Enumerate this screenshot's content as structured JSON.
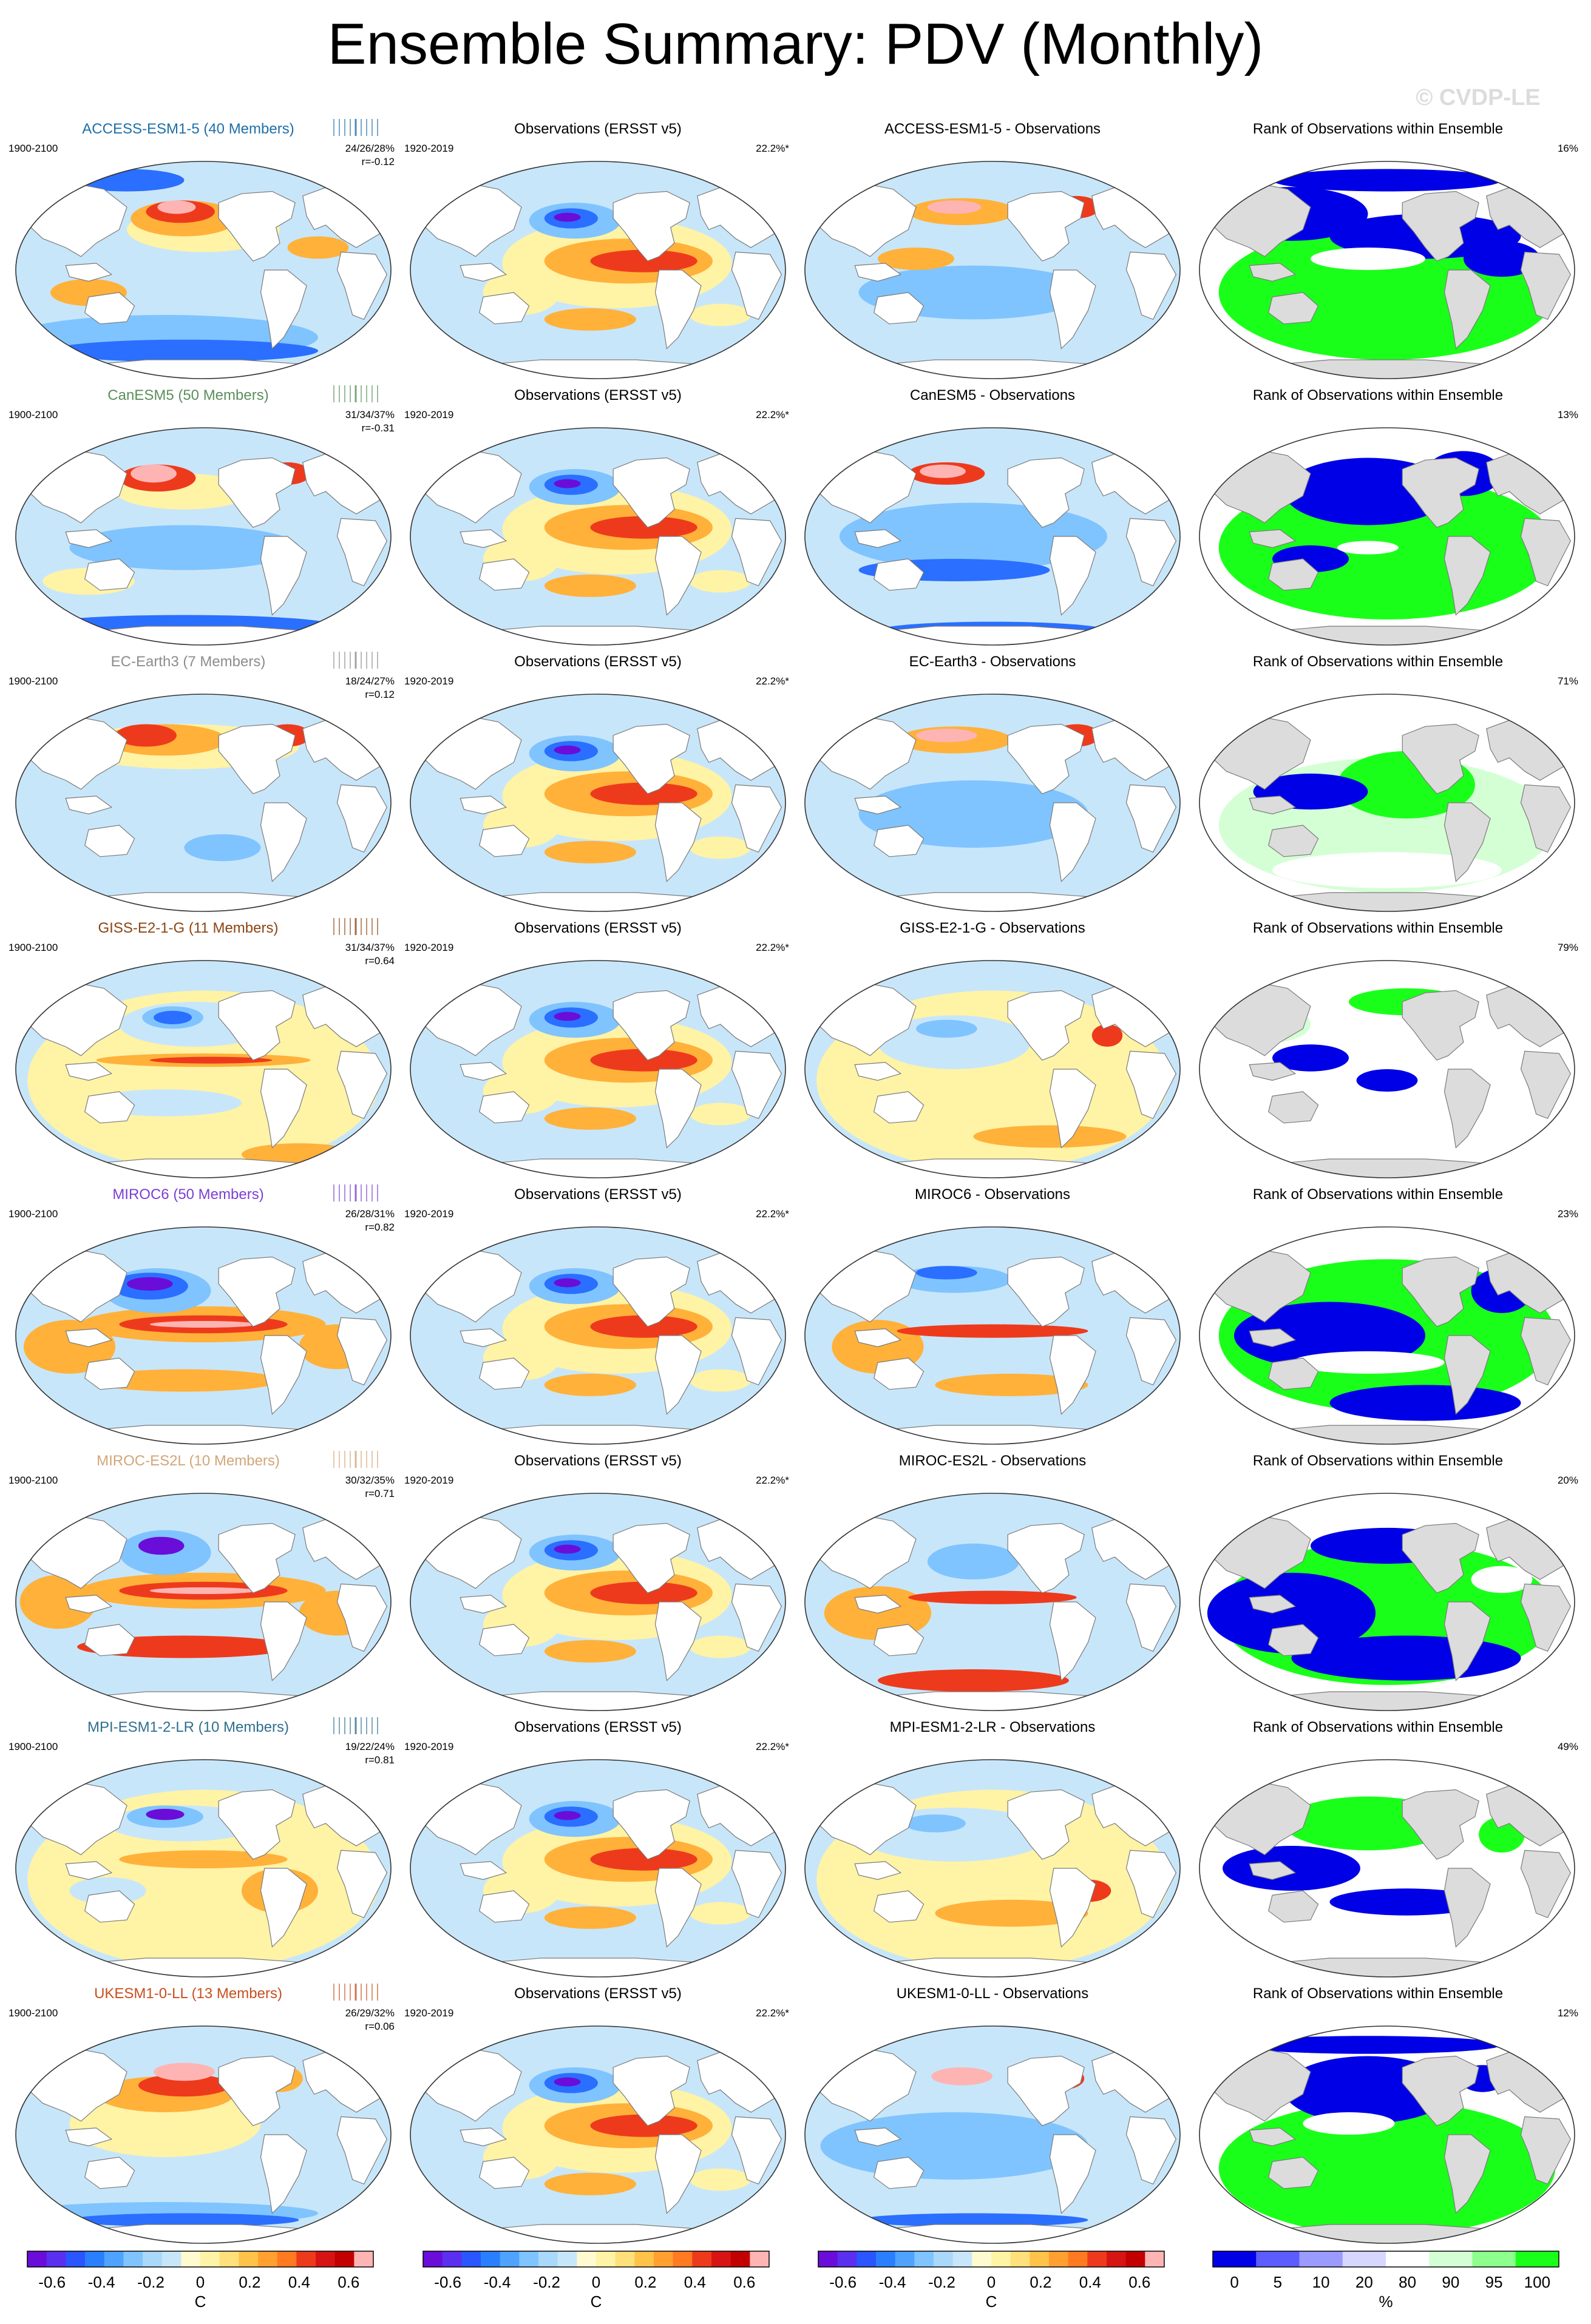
{
  "title": "Ensemble Summary: PDV (Monthly)",
  "watermark": "© CVDP-LE",
  "colors": {
    "cold_strong": "#6a0dd8",
    "cold": "#2a6fff",
    "cool": "#7fc4ff",
    "cool_light": "#c8e6fa",
    "neutral": "#ffffff",
    "warm_light": "#fff3a6",
    "warm": "#ffb13a",
    "hot": "#ee3a1c",
    "hot_strong": "#c30000",
    "extreme": "#ffb4b4",
    "land": "#ffffff",
    "land_rank": "#dcdcdc",
    "rank_low": "#0000e6",
    "rank_high": "#1aff1a",
    "rank_mid": "#ffffff",
    "rank_light_low": "#d6d6ff",
    "rank_light_high": "#d4ffd4"
  },
  "obs_panel": {
    "title": "Observations (ERSST v5)",
    "period": "1920-2019",
    "pct": "22.2%*"
  },
  "rank_title": "Rank of Observations within Ensemble",
  "rows": [
    {
      "model": "ACCESS-ESM1-5",
      "members": "ACCESS-ESM1-5 (40 Members)",
      "color": "#1f6fa8",
      "period": "1900-2100",
      "pcts": "24/26/28%",
      "r": "r=-0.12",
      "diff": "ACCESS-ESM1-5 - Observations",
      "rank_pct": "16%",
      "pattern": "access"
    },
    {
      "model": "CanESM5",
      "members": "CanESM5 (50 Members)",
      "color": "#5b8f5b",
      "period": "1900-2100",
      "pcts": "31/34/37%",
      "r": "r=-0.31",
      "diff": "CanESM5 - Observations",
      "rank_pct": "13%",
      "pattern": "canesm"
    },
    {
      "model": "EC-Earth3",
      "members": "EC-Earth3 (7 Members)",
      "color": "#8c8c8c",
      "period": "1900-2100",
      "pcts": "18/24/27%",
      "r": "r=0.12",
      "diff": "EC-Earth3 - Observations",
      "rank_pct": "71%",
      "pattern": "ecearth"
    },
    {
      "model": "GISS-E2-1-G",
      "members": "GISS-E2-1-G (11 Members)",
      "color": "#8b4513",
      "period": "1900-2100",
      "pcts": "31/34/37%",
      "r": "r=0.64",
      "diff": "GISS-E2-1-G - Observations",
      "rank_pct": "79%",
      "pattern": "giss"
    },
    {
      "model": "MIROC6",
      "members": "MIROC6 (50 Members)",
      "color": "#7b3fd4",
      "period": "1900-2100",
      "pcts": "26/28/31%",
      "r": "r=0.82",
      "diff": "MIROC6 - Observations",
      "rank_pct": "23%",
      "pattern": "miroc6"
    },
    {
      "model": "MIROC-ES2L",
      "members": "MIROC-ES2L (10 Members)",
      "color": "#d2a679",
      "period": "1900-2100",
      "pcts": "30/32/35%",
      "r": "r=0.71",
      "diff": "MIROC-ES2L - Observations",
      "rank_pct": "20%",
      "pattern": "mirocesl"
    },
    {
      "model": "MPI-ESM1-2-LR",
      "members": "MPI-ESM1-2-LR (10 Members)",
      "color": "#2f6f8f",
      "period": "1900-2100",
      "pcts": "19/22/24%",
      "r": "r=0.81",
      "diff": "MPI-ESM1-2-LR - Observations",
      "rank_pct": "49%",
      "pattern": "mpi"
    },
    {
      "model": "UKESM1-0-LL",
      "members": "UKESM1-0-LL (13 Members)",
      "color": "#c8501e",
      "period": "1900-2100",
      "pcts": "26/29/32%",
      "r": "r=0.06",
      "diff": "UKESM1-0-LL - Observations",
      "rank_pct": "12%",
      "pattern": "ukesm"
    }
  ],
  "colorbar_temp": {
    "labels": [
      "-0.6",
      "-0.4",
      "-0.2",
      "0",
      "0.2",
      "0.4",
      "0.6"
    ],
    "unit": "C",
    "colors": [
      "#6a0dd8",
      "#5a2ff0",
      "#2a55ff",
      "#2a7fff",
      "#4fa3ff",
      "#7fc4ff",
      "#a9d8fa",
      "#c8e6fa",
      "#fffad0",
      "#fff3a6",
      "#ffe07a",
      "#ffc34a",
      "#ffa030",
      "#ff7a20",
      "#ee3a1c",
      "#d71414",
      "#c30000",
      "#ffb4b4"
    ]
  },
  "colorbar_rank": {
    "labels": [
      "0",
      "5",
      "10",
      "20",
      "80",
      "90",
      "95",
      "100"
    ],
    "unit": "%",
    "colors": [
      "#0000e6",
      "#5c5cff",
      "#9a9aff",
      "#d6d6ff",
      "#ffffff",
      "#d4ffd4",
      "#8cff8c",
      "#1aff1a"
    ]
  }
}
